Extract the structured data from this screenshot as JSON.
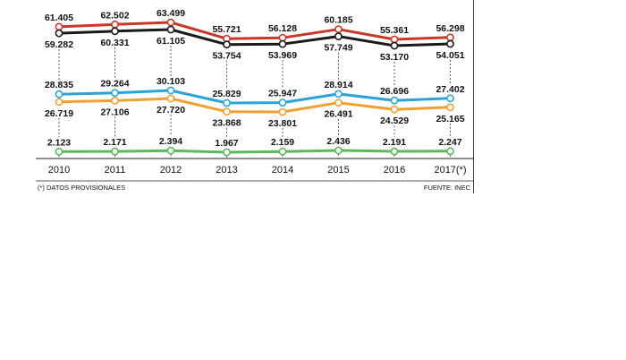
{
  "chart_data": {
    "type": "line",
    "title": "",
    "xlabel": "",
    "ylabel": "",
    "categories": [
      "2010",
      "2011",
      "2012",
      "2013",
      "2014",
      "2015",
      "2016",
      "2017(*)"
    ],
    "series": [
      {
        "color": "#c8382a",
        "values": [
          61405,
          62502,
          63499,
          55721,
          56128,
          60185,
          55361,
          56298
        ],
        "labels": [
          "61.405",
          "62.502",
          "63.499",
          "55.721",
          "56.128",
          "60.185",
          "55.361",
          "56.298"
        ]
      },
      {
        "color": "#1a1a1a",
        "values": [
          59282,
          60331,
          61105,
          53754,
          53969,
          57749,
          53170,
          54051
        ],
        "labels": [
          "59.282",
          "60.331",
          "61.105",
          "53.754",
          "53.969",
          "57.749",
          "53.170",
          "54.051"
        ]
      },
      {
        "color": "#2aa3d8",
        "values": [
          28835,
          29264,
          30103,
          25829,
          25947,
          28914,
          26696,
          27402
        ],
        "labels": [
          "28.835",
          "29.264",
          "30.103",
          "25.829",
          "25.947",
          "28.914",
          "26.696",
          "27.402"
        ]
      },
      {
        "color": "#f0a033",
        "values": [
          26719,
          27106,
          27720,
          23868,
          23801,
          26491,
          24529,
          25165
        ],
        "labels": [
          "26.719",
          "27.106",
          "27.720",
          "23.868",
          "23.801",
          "26.491",
          "24.529",
          "25.165"
        ]
      },
      {
        "color": "#5cb85c",
        "values": [
          2123,
          2171,
          2394,
          1967,
          2159,
          2436,
          2191,
          2247
        ],
        "labels": [
          "2.123",
          "2.171",
          "2.394",
          "1.967",
          "2.159",
          "2.436",
          "2.191",
          "2.247"
        ]
      }
    ],
    "grid": false,
    "legend": "none"
  },
  "footnote": "(*) DATOS PROVISIONALES",
  "source": "FUENTE: INEC"
}
